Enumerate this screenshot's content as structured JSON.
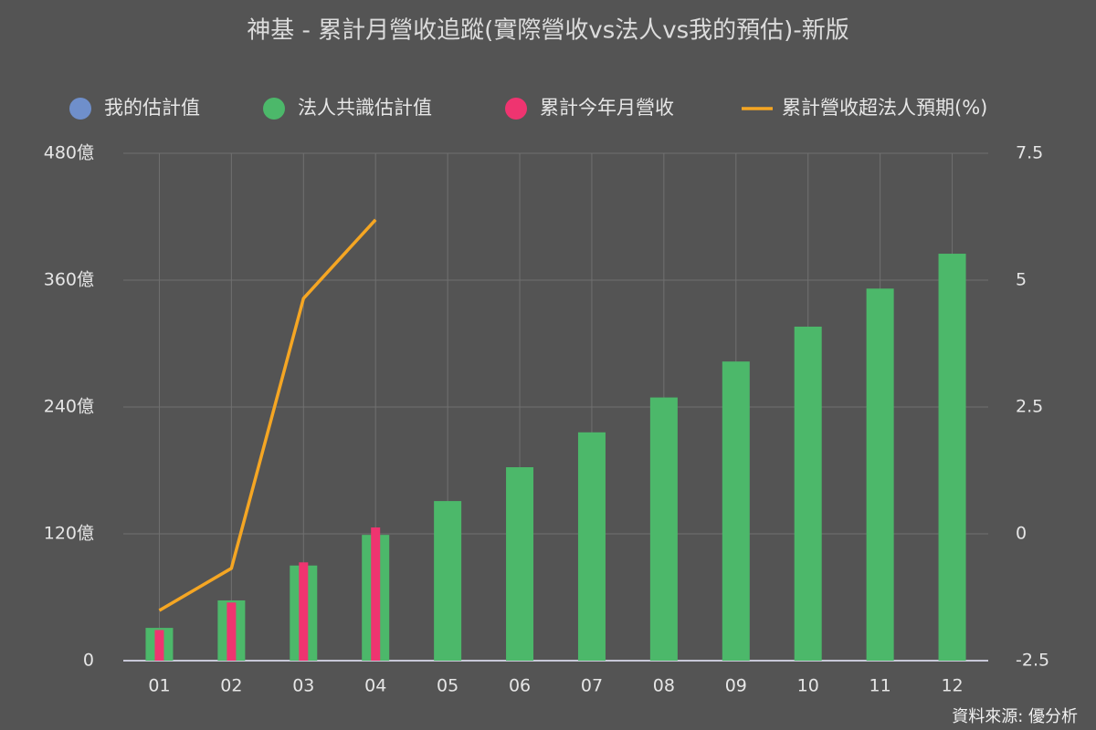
{
  "chart_data": {
    "type": "bar",
    "title": "神基 - 累計月營收追蹤(實際營收vs法人vs我的預估)-新版",
    "source": "資料來源: 優分析",
    "categories": [
      "01",
      "02",
      "03",
      "04",
      "05",
      "06",
      "07",
      "08",
      "09",
      "10",
      "11",
      "12"
    ],
    "series": [
      {
        "name": "我的估計值",
        "type": "bar",
        "color": "#6f8fcb",
        "values": [
          null,
          null,
          null,
          null,
          null,
          null,
          null,
          null,
          null,
          null,
          null,
          null
        ]
      },
      {
        "name": "法人共識估計值",
        "type": "bar",
        "color": "#4cb86a",
        "values": [
          31,
          57,
          90,
          119,
          151,
          183,
          216,
          249,
          283,
          316,
          352,
          385
        ]
      },
      {
        "name": "累計今年月營收",
        "type": "bar",
        "color": "#ef3470",
        "values": [
          29,
          55,
          93,
          126,
          null,
          null,
          null,
          null,
          null,
          null,
          null,
          null
        ]
      },
      {
        "name": "累計營收超法人預期(%)",
        "type": "line",
        "axis": "y2",
        "color": "#f5a623",
        "values": [
          -1.51,
          -0.68,
          4.64,
          6.19,
          null,
          null,
          null,
          null,
          null,
          null,
          null,
          null
        ]
      }
    ],
    "ylim": [
      0,
      480
    ],
    "yticks": [
      0,
      {
        "value": 120,
        "label": "120億"
      },
      {
        "value": 240,
        "label": "240億"
      },
      {
        "value": 360,
        "label": "360億"
      },
      {
        "value": 480,
        "label": "480億"
      }
    ],
    "y2lim": [
      -2.5,
      7.5
    ],
    "y2ticks": [
      -2.5,
      0,
      2.5,
      5,
      7.5
    ],
    "grid": true,
    "legend": "top"
  }
}
